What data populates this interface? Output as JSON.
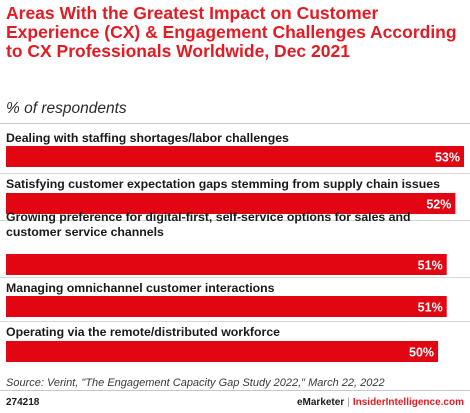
{
  "header": {
    "title": "Areas With the Greatest Impact on Customer Experience (CX) & Engagement Challenges According to CX Professionals Worldwide, Dec 2021",
    "subtitle": "% of respondents"
  },
  "chart_data": {
    "type": "bar",
    "orientation": "horizontal",
    "title": "Areas With the Greatest Impact on Customer Experience (CX) & Engagement Challenges According to CX Professionals Worldwide, Dec 2021",
    "subtitle": "% of respondents",
    "categories": [
      "Dealing with staffing shortages/labor challenges",
      "Satisfying customer expectation gaps stemming from supply chain issues",
      "Growing preference for digital-first, self-service options for sales and customer service channels",
      "Managing omnichannel customer interactions",
      "Operating via the remote/distributed workforce"
    ],
    "category_lines": [
      [
        "Dealing with staffing shortages/labor challenges"
      ],
      [
        "Satisfying customer expectation gaps stemming from supply chain issues"
      ],
      [
        "Growing preference for digital-first, self-service options for sales and",
        "customer service channels"
      ],
      [
        "Managing omnichannel customer interactions"
      ],
      [
        "Operating via the remote/distributed workforce"
      ]
    ],
    "values": [
      53,
      52,
      51,
      51,
      50
    ],
    "value_labels": [
      "53%",
      "52%",
      "51%",
      "51%",
      "50%"
    ],
    "xlim": [
      0,
      53
    ],
    "bar_color": "#e20613",
    "grid": false,
    "legend": "none"
  },
  "footer": {
    "source": "Source: Verint, \"The Engagement Capacity Gap Study 2022,\" March 22, 2022",
    "code": "274218",
    "brand_left": "eMarketer",
    "brand_sep": "|",
    "brand_right": "InsiderIntelligence.com"
  },
  "colors": {
    "accent": "#e31b23",
    "bar": "#e20613"
  }
}
